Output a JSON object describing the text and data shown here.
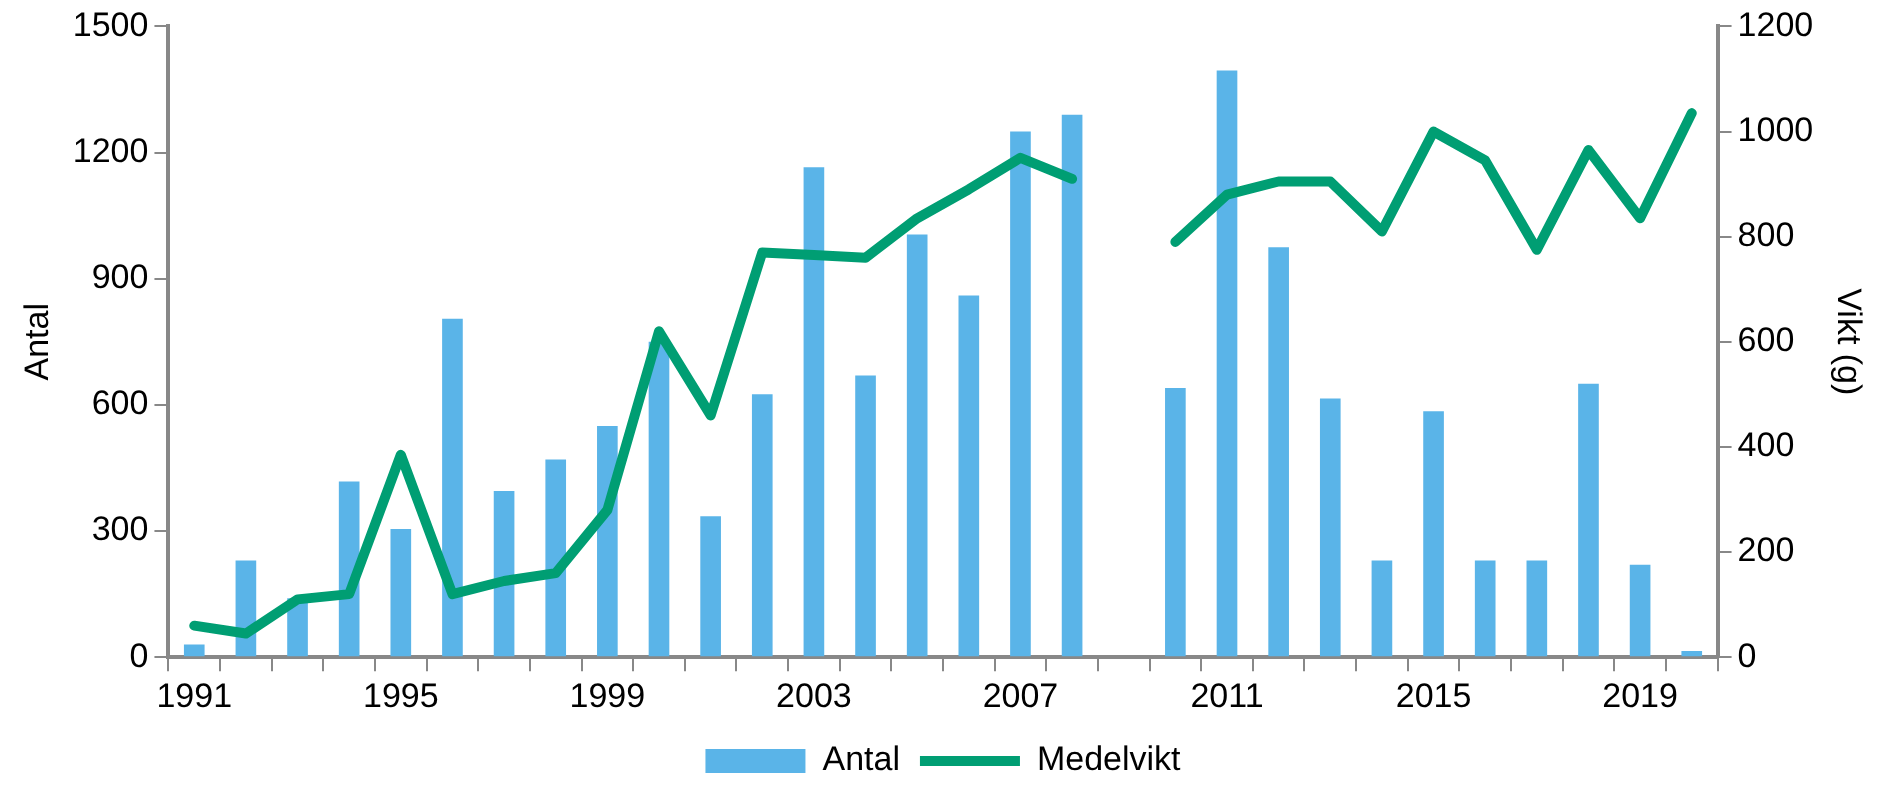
{
  "chart_data": {
    "type": "bar",
    "ylabel": "Antal",
    "y2label": "Vikt (g)",
    "categories": [
      "1991",
      null,
      null,
      null,
      "1995",
      null,
      null,
      null,
      "1999",
      null,
      null,
      null,
      "2003",
      null,
      null,
      null,
      "2007",
      null,
      null,
      null,
      "2011",
      null,
      null,
      null,
      "2015",
      null,
      null,
      null,
      "2019",
      null
    ],
    "series": [
      {
        "name": "Antal",
        "color": "#5ab4e8",
        "values": [
          30,
          230,
          140,
          418,
          305,
          805,
          395,
          470,
          550,
          750,
          335,
          625,
          1165,
          670,
          1005,
          860,
          1250,
          1290,
          null,
          640,
          1395,
          975,
          615,
          230,
          585,
          230,
          230,
          650,
          220,
          15
        ]
      },
      {
        "name": "Medelvikt",
        "type": "line",
        "axis": "y2",
        "color": "#009e73",
        "values": [
          60,
          45,
          110,
          120,
          385,
          120,
          145,
          160,
          280,
          620,
          460,
          770,
          765,
          760,
          835,
          890,
          950,
          910,
          null,
          790,
          880,
          905,
          905,
          810,
          1000,
          945,
          775,
          965,
          835,
          1035
        ]
      }
    ],
    "ylim": [
      0,
      1500
    ],
    "yticks": [
      0,
      300,
      600,
      900,
      1200,
      1500
    ],
    "y2lim": [
      0,
      1200
    ],
    "y2ticks": [
      0,
      200,
      400,
      600,
      800,
      1000,
      1200
    ],
    "grid": false,
    "legend": "bottom",
    "marker": "none",
    "line_style": "solid"
  }
}
